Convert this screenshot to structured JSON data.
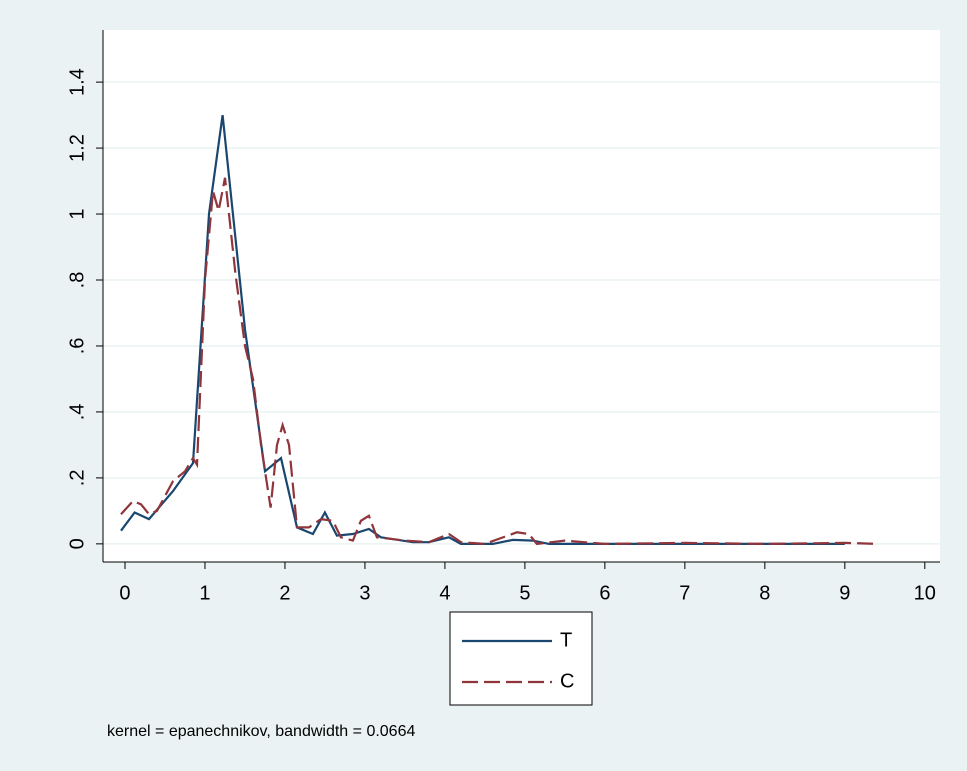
{
  "chart_data": {
    "type": "line",
    "note": "kernel = epanechnikov, bandwidth = 0.0664",
    "xlim": [
      -0.275,
      10.19
    ],
    "ylim": [
      -0.055,
      1.558
    ],
    "xticks": [
      0,
      1,
      2,
      3,
      4,
      5,
      6,
      7,
      8,
      9,
      10
    ],
    "yticks": [
      0,
      {
        "value": 0.2,
        "label": ".2"
      },
      {
        "value": 0.4,
        "label": ".4"
      },
      {
        "value": 0.6,
        "label": ".6"
      },
      {
        "value": 0.8,
        "label": ".8"
      },
      1,
      {
        "value": 1.2,
        "label": "1.2"
      },
      {
        "value": 1.4,
        "label": "1.4"
      }
    ],
    "grid": true,
    "series": [
      {
        "name": "T",
        "color": "#1a476f",
        "dash": false,
        "x": [
          -0.05,
          0.12,
          0.3,
          0.6,
          0.85,
          1.05,
          1.22,
          1.5,
          1.75,
          1.95,
          2.15,
          2.35,
          2.5,
          2.65,
          2.85,
          3.05,
          3.2,
          3.6,
          3.8,
          4.05,
          4.2,
          4.6,
          4.85,
          5.1,
          5.3,
          6,
          7,
          8,
          9
        ],
        "values": [
          0.04,
          0.095,
          0.075,
          0.16,
          0.245,
          1.0,
          1.3,
          0.65,
          0.22,
          0.26,
          0.05,
          0.03,
          0.095,
          0.025,
          0.03,
          0.045,
          0.02,
          0.005,
          0.005,
          0.02,
          0,
          0,
          0.012,
          0.01,
          0,
          0,
          0,
          0,
          0
        ]
      },
      {
        "name": "C",
        "color": "#90353b",
        "dash": true,
        "x": [
          -0.05,
          0.1,
          0.2,
          0.3,
          0.4,
          0.6,
          0.75,
          0.85,
          0.9,
          1.0,
          1.1,
          1.17,
          1.25,
          1.3,
          1.38,
          1.5,
          1.6,
          1.7,
          1.82,
          1.9,
          1.97,
          2.05,
          2.15,
          2.3,
          2.45,
          2.6,
          2.7,
          2.85,
          2.95,
          3.05,
          3.15,
          3.5,
          3.8,
          4.05,
          4.2,
          4.5,
          4.9,
          5.05,
          5.15,
          5.5,
          6,
          7,
          8,
          9,
          9.4
        ],
        "values": [
          0.09,
          0.13,
          0.12,
          0.09,
          0.1,
          0.19,
          0.22,
          0.26,
          0.24,
          0.8,
          1.07,
          1.01,
          1.11,
          1.0,
          0.82,
          0.6,
          0.5,
          0.3,
          0.11,
          0.3,
          0.36,
          0.3,
          0.05,
          0.05,
          0.075,
          0.07,
          0.02,
          0.01,
          0.07,
          0.085,
          0.02,
          0.01,
          0.005,
          0.03,
          0.005,
          0,
          0.035,
          0.03,
          0,
          0.01,
          0,
          0.003,
          0,
          0.003,
          0
        ]
      }
    ],
    "legend": "bottom"
  }
}
